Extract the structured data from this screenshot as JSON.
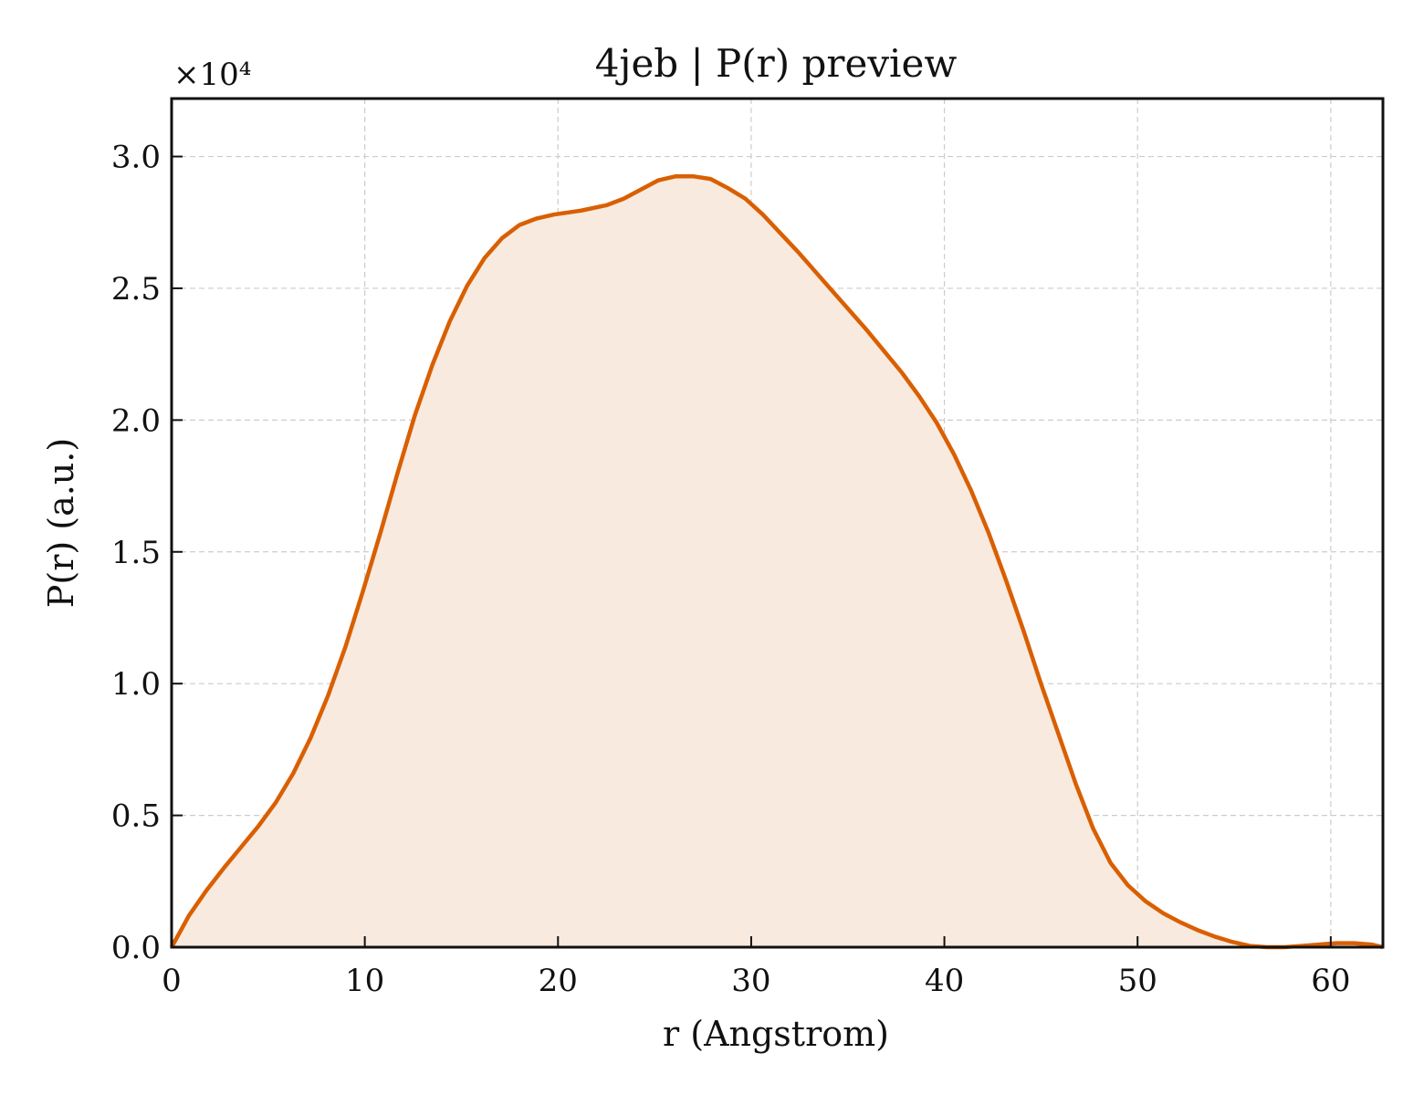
{
  "chart_data": {
    "type": "area",
    "title": "4jeb | P(r) preview",
    "xlabel": "r (Angstrom)",
    "ylabel": "P(r) (a.u.)",
    "y_multiplier_label": "×10⁴",
    "xlim": [
      0,
      62.7
    ],
    "ylim": [
      0,
      3.22
    ],
    "x_ticks": [
      0,
      10,
      20,
      30,
      40,
      50,
      60
    ],
    "y_ticks": [
      0.0,
      0.5,
      1.0,
      1.5,
      2.0,
      2.5,
      3.0
    ],
    "y_tick_labels": [
      "0.0",
      "0.5",
      "1.0",
      "1.5",
      "2.0",
      "2.5",
      "3.0"
    ],
    "grid": true,
    "line_color": "#d95f02",
    "fill_color": "#f8eadf",
    "series": [
      {
        "x": [
          0,
          0.9,
          1.8,
          2.7,
          3.6,
          4.5,
          5.4,
          6.3,
          7.2,
          8.1,
          9.0,
          9.9,
          10.8,
          11.7,
          12.6,
          13.5,
          14.4,
          15.3,
          16.2,
          17.1,
          18.0,
          18.9,
          19.8,
          21.2,
          22.5,
          23.4,
          24.3,
          25.2,
          26.1,
          27.0,
          27.9,
          28.8,
          29.7,
          30.6,
          31.5,
          32.4,
          33.3,
          34.2,
          35.1,
          36.0,
          36.9,
          37.8,
          38.7,
          39.6,
          40.5,
          41.4,
          42.3,
          43.2,
          44.1,
          45.0,
          45.9,
          46.8,
          47.7,
          48.6,
          49.5,
          50.4,
          51.3,
          52.2,
          53.1,
          54.0,
          54.9,
          55.8,
          56.7,
          57.6,
          58.5,
          59.4,
          60.3,
          61.2,
          62.1,
          62.7
        ],
        "y": [
          0.0,
          0.12,
          0.215,
          0.3,
          0.38,
          0.46,
          0.55,
          0.66,
          0.795,
          0.955,
          1.14,
          1.35,
          1.57,
          1.8,
          2.02,
          2.21,
          2.375,
          2.51,
          2.615,
          2.69,
          2.74,
          2.765,
          2.78,
          2.795,
          2.815,
          2.84,
          2.875,
          2.91,
          2.925,
          2.925,
          2.915,
          2.88,
          2.84,
          2.78,
          2.71,
          2.64,
          2.565,
          2.49,
          2.415,
          2.34,
          2.26,
          2.18,
          2.09,
          1.99,
          1.87,
          1.73,
          1.57,
          1.39,
          1.2,
          1.0,
          0.81,
          0.62,
          0.45,
          0.32,
          0.235,
          0.175,
          0.13,
          0.095,
          0.065,
          0.04,
          0.02,
          0.005,
          0.0,
          0.0,
          0.005,
          0.01,
          0.015,
          0.015,
          0.01,
          0.0
        ]
      }
    ]
  }
}
